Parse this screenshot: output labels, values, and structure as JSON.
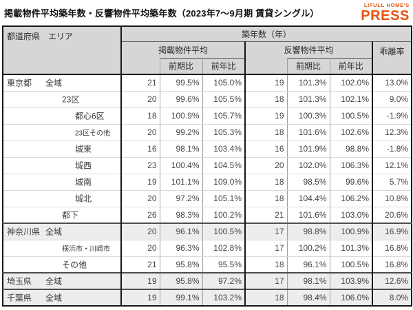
{
  "title": "掲載物件平均築年数・反響物件平均築年数（2023年7～9月期 賃貸シングル）",
  "logo": {
    "brand": "LIFULL HOME'S",
    "product": "PRESS",
    "color": "#e9530e"
  },
  "colors": {
    "header_bg": "#d6d6d6",
    "shaded_row_bg": "#ededed",
    "border_strong": "#161616",
    "text": "#3c3c3c"
  },
  "chart_data": {
    "type": "table",
    "title": "掲載物件平均築年数・反響物件平均築年数（2023年7～9月期 賃貸シングル）",
    "header": {
      "prefecture": "都道府県",
      "area": "エリア",
      "age_group": "築年数（年）",
      "listed_group": "掲載物件平均",
      "response_group": "反響物件平均",
      "qoq": "前期比",
      "yoy": "前年比",
      "divergence": "乖離率"
    },
    "columns": [
      "都道府県",
      "エリア",
      "掲載物件平均",
      "掲載物件平均 前期比",
      "掲載物件平均 前年比",
      "反響物件平均",
      "反響物件平均 前期比",
      "反響物件平均 前年比",
      "乖離率"
    ],
    "rows": [
      {
        "prefecture": "東京都",
        "area": "全域",
        "indent": 1,
        "small_label": false,
        "shaded": false,
        "group_start": false,
        "listed_avg": 21,
        "listed_qoq": "99.5%",
        "listed_yoy": "105.0%",
        "response_avg": 19,
        "response_qoq": "101.3%",
        "response_yoy": "102.0%",
        "divergence": "13.0%"
      },
      {
        "prefecture": "",
        "area": "23区",
        "indent": 2,
        "small_label": false,
        "shaded": false,
        "group_start": false,
        "listed_avg": 20,
        "listed_qoq": "99.6%",
        "listed_yoy": "105.5%",
        "response_avg": 18,
        "response_qoq": "101.3%",
        "response_yoy": "102.1%",
        "divergence": "9.0%"
      },
      {
        "prefecture": "",
        "area": "都心6区",
        "indent": 3,
        "small_label": false,
        "shaded": false,
        "group_start": false,
        "listed_avg": 18,
        "listed_qoq": "100.9%",
        "listed_yoy": "105.7%",
        "response_avg": 19,
        "response_qoq": "100.3%",
        "response_yoy": "100.5%",
        "divergence": "-1.9%"
      },
      {
        "prefecture": "",
        "area": "23区その他",
        "indent": 3,
        "small_label": true,
        "shaded": false,
        "group_start": false,
        "listed_avg": 20,
        "listed_qoq": "99.2%",
        "listed_yoy": "105.3%",
        "response_avg": 18,
        "response_qoq": "101.6%",
        "response_yoy": "102.6%",
        "divergence": "12.3%"
      },
      {
        "prefecture": "",
        "area": "城東",
        "indent": 3,
        "small_label": false,
        "shaded": false,
        "group_start": false,
        "listed_avg": 16,
        "listed_qoq": "98.1%",
        "listed_yoy": "103.4%",
        "response_avg": 16,
        "response_qoq": "101.9%",
        "response_yoy": "98.8%",
        "divergence": "-1.8%"
      },
      {
        "prefecture": "",
        "area": "城西",
        "indent": 3,
        "small_label": false,
        "shaded": false,
        "group_start": false,
        "listed_avg": 23,
        "listed_qoq": "100.4%",
        "listed_yoy": "104.5%",
        "response_avg": 20,
        "response_qoq": "102.0%",
        "response_yoy": "106.3%",
        "divergence": "12.1%"
      },
      {
        "prefecture": "",
        "area": "城南",
        "indent": 3,
        "small_label": false,
        "shaded": false,
        "group_start": false,
        "listed_avg": 19,
        "listed_qoq": "101.1%",
        "listed_yoy": "109.0%",
        "response_avg": 18,
        "response_qoq": "98.5%",
        "response_yoy": "99.6%",
        "divergence": "5.7%"
      },
      {
        "prefecture": "",
        "area": "城北",
        "indent": 3,
        "small_label": false,
        "shaded": false,
        "group_start": false,
        "listed_avg": 20,
        "listed_qoq": "97.2%",
        "listed_yoy": "105.1%",
        "response_avg": 18,
        "response_qoq": "104.4%",
        "response_yoy": "106.2%",
        "divergence": "10.8%"
      },
      {
        "prefecture": "",
        "area": "都下",
        "indent": 2,
        "small_label": false,
        "shaded": false,
        "group_start": false,
        "listed_avg": 26,
        "listed_qoq": "98.3%",
        "listed_yoy": "100.2%",
        "response_avg": 21,
        "response_qoq": "101.6%",
        "response_yoy": "103.0%",
        "divergence": "20.6%"
      },
      {
        "prefecture": "神奈川県",
        "area": "全域",
        "indent": 1,
        "small_label": false,
        "shaded": true,
        "group_start": true,
        "listed_avg": 20,
        "listed_qoq": "96.1%",
        "listed_yoy": "100.5%",
        "response_avg": 17,
        "response_qoq": "98.8%",
        "response_yoy": "100.9%",
        "divergence": "16.9%"
      },
      {
        "prefecture": "",
        "area": "横浜市・川崎市",
        "indent": 2,
        "small_label": true,
        "shaded": false,
        "group_start": false,
        "listed_avg": 20,
        "listed_qoq": "96.3%",
        "listed_yoy": "102.8%",
        "response_avg": 17,
        "response_qoq": "100.2%",
        "response_yoy": "101.3%",
        "divergence": "16.8%"
      },
      {
        "prefecture": "",
        "area": "その他",
        "indent": 2,
        "small_label": false,
        "shaded": false,
        "group_start": false,
        "listed_avg": 21,
        "listed_qoq": "95.8%",
        "listed_yoy": "95.5%",
        "response_avg": 18,
        "response_qoq": "96.1%",
        "response_yoy": "100.5%",
        "divergence": "16.8%"
      },
      {
        "prefecture": "埼玉県",
        "area": "全域",
        "indent": 1,
        "small_label": false,
        "shaded": true,
        "group_start": true,
        "listed_avg": 19,
        "listed_qoq": "95.8%",
        "listed_yoy": "97.2%",
        "response_avg": 17,
        "response_qoq": "98.1%",
        "response_yoy": "103.9%",
        "divergence": "12.6%"
      },
      {
        "prefecture": "千葉県",
        "area": "全域",
        "indent": 1,
        "small_label": false,
        "shaded": true,
        "group_start": true,
        "listed_avg": 19,
        "listed_qoq": "99.1%",
        "listed_yoy": "103.2%",
        "response_avg": 18,
        "response_qoq": "98.4%",
        "response_yoy": "106.0%",
        "divergence": "8.0%"
      }
    ]
  }
}
